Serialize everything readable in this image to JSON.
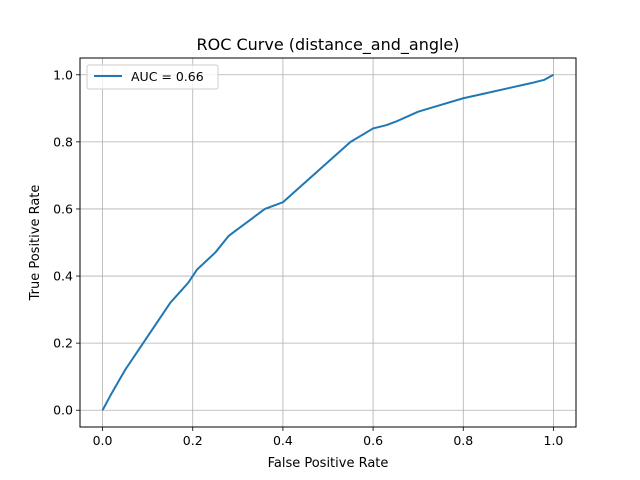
{
  "chart_data": {
    "type": "line",
    "title": "ROC Curve (distance_and_angle)",
    "xlabel": "False Positive Rate",
    "ylabel": "True Positive Rate",
    "xlim": [
      -0.05,
      1.05
    ],
    "ylim": [
      -0.05,
      1.05
    ],
    "xticks": [
      0.0,
      0.2,
      0.4,
      0.6,
      0.8,
      1.0
    ],
    "yticks": [
      0.0,
      0.2,
      0.4,
      0.6,
      0.8,
      1.0
    ],
    "xtick_labels": [
      "0.0",
      "0.2",
      "0.4",
      "0.6",
      "0.8",
      "1.0"
    ],
    "ytick_labels": [
      "0.0",
      "0.2",
      "0.4",
      "0.6",
      "0.8",
      "1.0"
    ],
    "grid": true,
    "legend_position": "top-left",
    "series": [
      {
        "name": "AUC = 0.66",
        "color": "#1f77b4",
        "x": [
          0.0,
          0.02,
          0.05,
          0.08,
          0.1,
          0.13,
          0.15,
          0.17,
          0.19,
          0.21,
          0.25,
          0.28,
          0.3,
          0.33,
          0.36,
          0.38,
          0.4,
          0.45,
          0.5,
          0.55,
          0.6,
          0.63,
          0.65,
          0.7,
          0.75,
          0.8,
          0.85,
          0.9,
          0.95,
          0.98,
          1.0
        ],
        "y": [
          0.0,
          0.05,
          0.12,
          0.18,
          0.22,
          0.28,
          0.32,
          0.35,
          0.38,
          0.42,
          0.47,
          0.52,
          0.54,
          0.57,
          0.6,
          0.61,
          0.62,
          0.68,
          0.74,
          0.8,
          0.84,
          0.85,
          0.86,
          0.89,
          0.91,
          0.93,
          0.945,
          0.96,
          0.975,
          0.985,
          1.0
        ]
      }
    ]
  }
}
